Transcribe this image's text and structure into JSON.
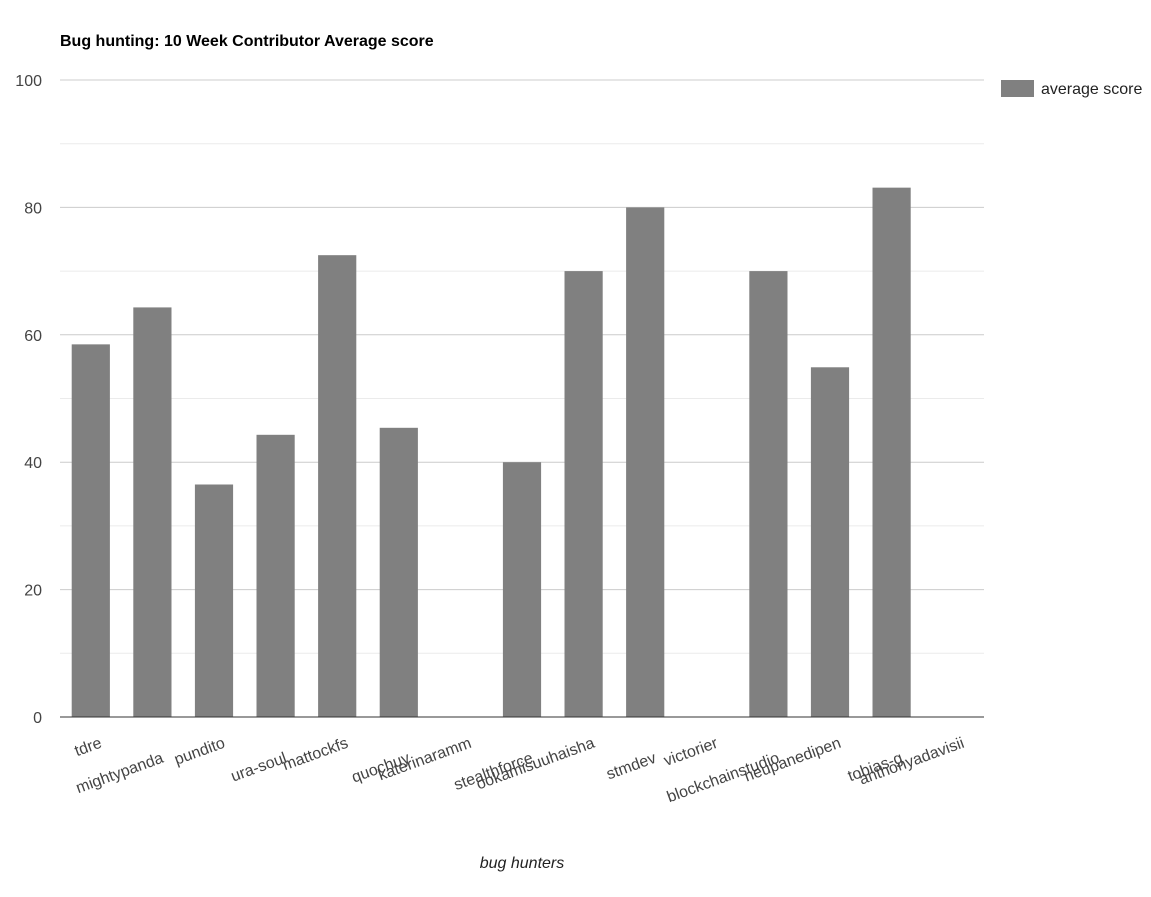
{
  "chart_data": {
    "type": "bar",
    "title": "Bug hunting: 10 Week Contributor Average score",
    "xlabel": "bug hunters",
    "ylabel": "",
    "ylim": [
      0,
      100
    ],
    "yticks": [
      0,
      20,
      40,
      60,
      80,
      100
    ],
    "grid": true,
    "legend_position": "right",
    "categories": [
      "tdre",
      "mightypanda",
      "pundito",
      "ura-soul",
      "mattockfs",
      "quochuy",
      "katerinaramm",
      "stealthforce",
      "ookamisuuhaisha",
      "stmdev",
      "victorier",
      "blockchainstudio",
      "neupanedipen",
      "tobias-g",
      "anthonyadavisii"
    ],
    "series": [
      {
        "name": "average score",
        "color": "#808080",
        "values": [
          58.5,
          64.3,
          36.5,
          44.3,
          72.5,
          45.4,
          0,
          40,
          70,
          80,
          0,
          70,
          54.9,
          83.1,
          0
        ]
      }
    ],
    "colors": {
      "bar": "#808080",
      "major_grid": "#cccccc",
      "minor_grid": "#ebebeb",
      "axis": "#333333",
      "tick_text": "#444444",
      "text": "#222222"
    }
  }
}
